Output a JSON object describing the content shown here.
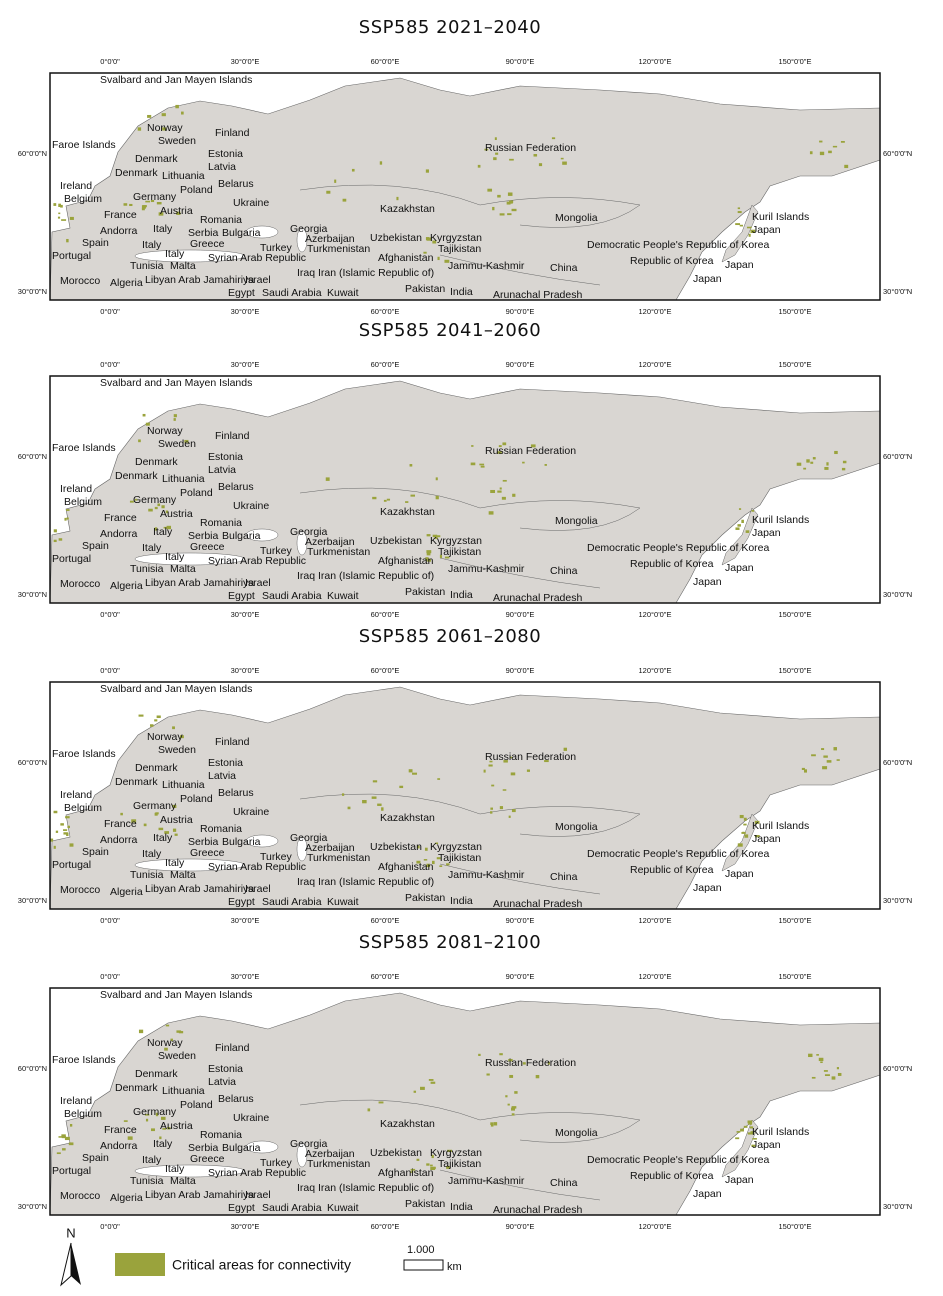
{
  "panels": [
    {
      "title": "SSP585 2021–2040"
    },
    {
      "title": "SSP585 2041–2060"
    },
    {
      "title": "SSP585 2061–2080"
    },
    {
      "title": "SSP585 2081–2100"
    }
  ],
  "longitude_labels": [
    "0°0'0\"",
    "30°0'0\"E",
    "60°0'0\"E",
    "90°0'0\"E",
    "120°0'0\"E",
    "150°0'0\"E"
  ],
  "latitude_labels": [
    "60°0'0\"N",
    "30°0'0\"N"
  ],
  "place_labels": [
    "Svalbard and Jan Mayen Islands",
    "Norway",
    "Finland",
    "Sweden",
    "Faroe Islands",
    "Russian Federation",
    "Denmark",
    "Estonia",
    "Latvia",
    "Denmark",
    "Lithuania",
    "Ireland",
    "Poland",
    "Belarus",
    "Germany",
    "Belgium",
    "Ukraine",
    "France",
    "Austria",
    "Kazakhstan",
    "Romania",
    "Mongolia",
    "Kuril Islands",
    "Georgia",
    "Italy",
    "Andorra",
    "Serbia",
    "Bulgaria",
    "Japan",
    "Azerbaijan",
    "Uzbekistan",
    "Kyrgyzstan",
    "Spain",
    "Italy",
    "Democratic People's Republic of Korea",
    "Greece",
    "Turkey",
    "Turkmenistan",
    "Tajikistan",
    "Italy",
    "Portugal",
    "Syrian Arab Republic",
    "Afghanistan",
    "Republic of Korea",
    "Japan",
    "Tunisia",
    "Malta",
    "Jammu-Kashmir",
    "China",
    "Iraq",
    "Iran (Islamic Republic of)",
    "Morocco",
    "Algeria",
    "Libyan Arab Jamahiriya",
    "Israel",
    "Japan",
    "Pakistan",
    "India",
    "Egypt",
    "Saudi Arabia",
    "Kuwait",
    "Arunachal Pradesh"
  ],
  "legend": {
    "north": "N",
    "label": "Critical areas for connectivity",
    "scale_value": "1.000",
    "scale_unit": "km"
  }
}
